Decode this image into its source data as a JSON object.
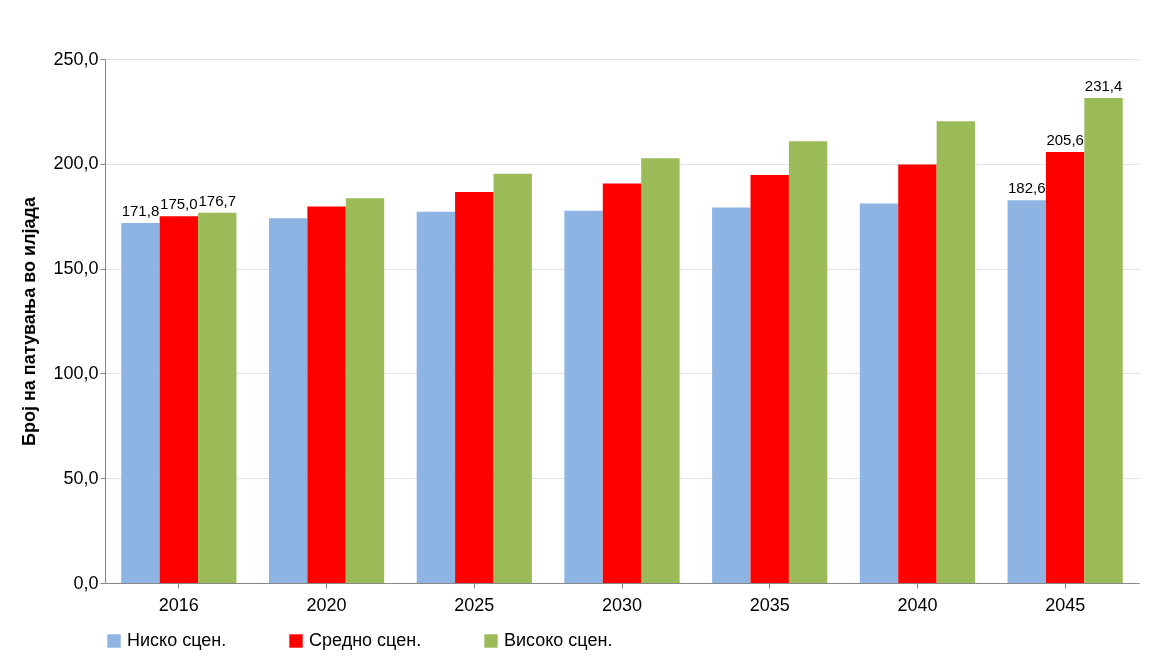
{
  "chart_data": {
    "type": "bar",
    "ylabel": "Број на патувања во илјада",
    "categories": [
      "2016",
      "2020",
      "2025",
      "2030",
      "2035",
      "2040",
      "2045"
    ],
    "series": [
      {
        "name": "Ниско сцен.",
        "color": "#8db4e2",
        "values": [
          171.8,
          174.0,
          177.1,
          177.6,
          179.1,
          181.1,
          182.6
        ],
        "value_labels": [
          "171,8",
          null,
          null,
          null,
          null,
          null,
          "182,6"
        ]
      },
      {
        "name": "Средно сцен.",
        "color": "#ff0000",
        "values": [
          175.0,
          179.6,
          186.6,
          190.6,
          194.7,
          199.7,
          205.6
        ],
        "value_labels": [
          "175,0",
          null,
          null,
          null,
          null,
          null,
          "205,6"
        ]
      },
      {
        "name": "Високо сцен.",
        "color": "#9bbb59",
        "values": [
          176.7,
          183.6,
          195.2,
          202.7,
          210.8,
          220.3,
          231.4
        ],
        "value_labels": [
          "176,7",
          null,
          null,
          null,
          null,
          null,
          "231,4"
        ]
      }
    ],
    "ylim": [
      0,
      250
    ],
    "yticks": [
      {
        "value": 0,
        "label": "0,0"
      },
      {
        "value": 50,
        "label": "50,0"
      },
      {
        "value": 100,
        "label": "100,0"
      },
      {
        "value": 150,
        "label": "150,0"
      },
      {
        "value": 200,
        "label": "200,0"
      },
      {
        "value": 250,
        "label": "250,0"
      }
    ],
    "grid": "y",
    "legend": "bottom"
  }
}
